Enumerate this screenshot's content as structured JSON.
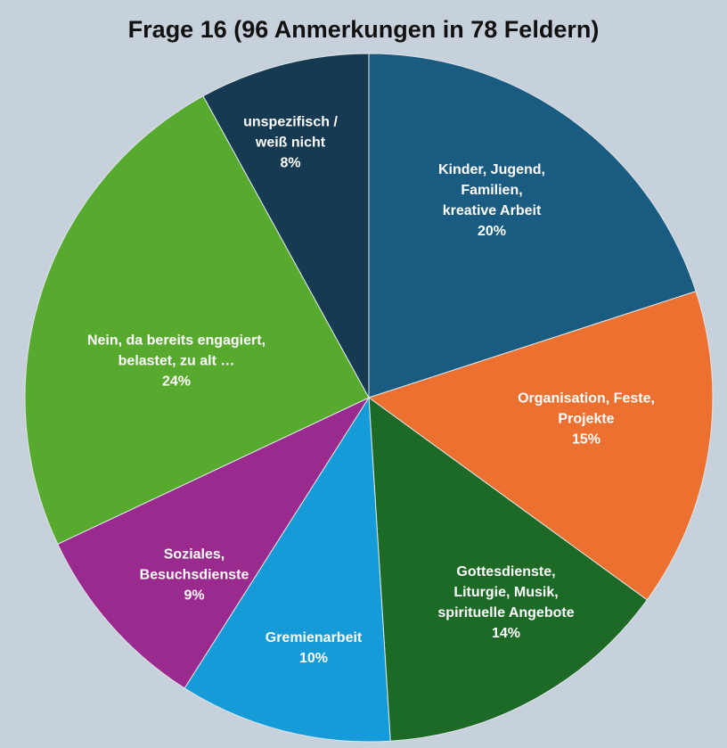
{
  "chart_data": {
    "type": "pie",
    "title": "Frage 16 (96 Anmerkungen in 78 Feldern)",
    "categories": [
      "Kinder, Jugend,\nFamilien,\nkreative Arbeit",
      "Organisation, Feste,\nProjekte",
      "Gottesdienste,\nLiturgie, Musik,\nspirituelle Angebote",
      "Gremienarbeit",
      "Soziales,\nBesuchsdienste",
      "Nein, da bereits engagiert,\nbelastet, zu alt …",
      "unspezifisch /\nweiß nicht"
    ],
    "values": [
      20,
      15,
      14,
      10,
      9,
      24,
      8
    ],
    "value_labels": [
      "20%",
      "15%",
      "14%",
      "10%",
      "9%",
      "24%",
      "8%"
    ],
    "colors": [
      "#1a5b81",
      "#ec7130",
      "#1c6a26",
      "#159bd7",
      "#9b2a8f",
      "#58aa2f",
      "#163a51"
    ]
  }
}
